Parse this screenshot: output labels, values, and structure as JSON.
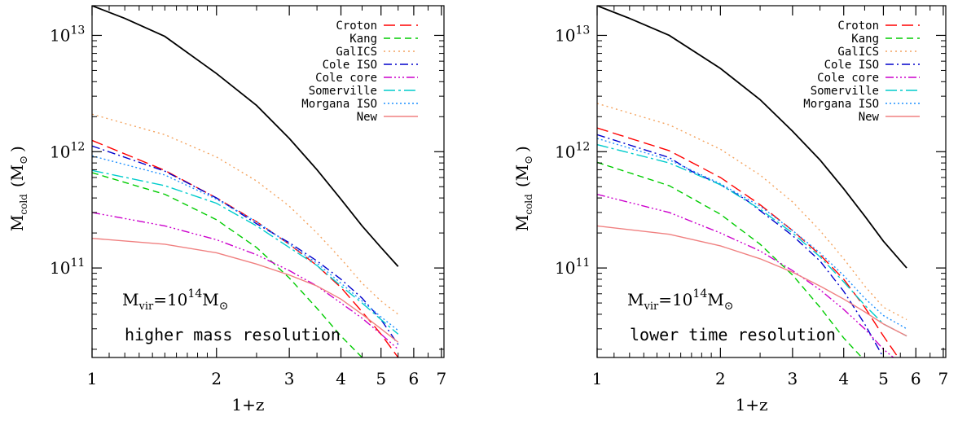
{
  "chart_data": [
    {
      "type": "line",
      "xlabel": "1+z",
      "ylabel": "M",
      "ylabel_sub": "cold",
      "ylabel_unit": "(M",
      "ylabel_unit_sym": "⊙",
      "ylabel_unit_close": ")",
      "xscale": "log",
      "yscale": "log",
      "xlim": [
        1,
        7.1
      ],
      "ylim": [
        17000000000.0,
        18000000000000.0
      ],
      "x_ticks": [
        1,
        2,
        3,
        4,
        5,
        6,
        7
      ],
      "x_tick_labels": [
        "1",
        "2",
        "3",
        "4",
        "5",
        "6",
        "7"
      ],
      "y_ticks": [
        100000000000.0,
        1000000000000.0,
        10000000000000.0
      ],
      "y_tick_labels": [
        {
          "base": "10",
          "exp": "11"
        },
        {
          "base": "10",
          "exp": "12"
        },
        {
          "base": "10",
          "exp": "13"
        }
      ],
      "annotation_mass": {
        "prefix": "M",
        "sub": "vir",
        "eq": "=10",
        "exp": "14",
        "unit": "M",
        "sym": "⊙"
      },
      "annotation_text": "higher mass resolution",
      "legend_position": "top-right",
      "series": [
        {
          "name": "Croton",
          "color": "#ff0000",
          "dash": "14,6",
          "points": [
            [
              1,
              1250000000000.0
            ],
            [
              1.5,
              690000000000.0
            ],
            [
              2,
              400000000000.0
            ],
            [
              2.5,
              250000000000.0
            ],
            [
              3,
              160000000000.0
            ],
            [
              3.5,
              105000000000.0
            ],
            [
              4,
              68000000000.0
            ],
            [
              4.5,
              42000000000.0
            ],
            [
              5,
              27000000000.0
            ],
            [
              5.5,
              17000000000.0
            ]
          ]
        },
        {
          "name": "Kang",
          "color": "#00cc00",
          "dash": "8,5",
          "points": [
            [
              1,
              660000000000.0
            ],
            [
              1.5,
              430000000000.0
            ],
            [
              2,
              260000000000.0
            ],
            [
              2.5,
              150000000000.0
            ],
            [
              3,
              82000000000.0
            ],
            [
              3.5,
              45000000000.0
            ],
            [
              4,
              26000000000.0
            ],
            [
              4.5,
              17000000000.0
            ]
          ]
        },
        {
          "name": "GalICS",
          "color": "#f4a460",
          "dash": "2,4",
          "points": [
            [
              1,
              2100000000000.0
            ],
            [
              1.5,
              1400000000000.0
            ],
            [
              2,
              900000000000.0
            ],
            [
              2.5,
              560000000000.0
            ],
            [
              3,
              340000000000.0
            ],
            [
              3.5,
              200000000000.0
            ],
            [
              4,
              120000000000.0
            ],
            [
              4.5,
              74000000000.0
            ],
            [
              5,
              52000000000.0
            ],
            [
              5.5,
              40000000000.0
            ]
          ]
        },
        {
          "name": "Cole ISO",
          "color": "#0000cc",
          "dash": "10,4,2,4",
          "points": [
            [
              1,
              1120000000000.0
            ],
            [
              1.5,
              680000000000.0
            ],
            [
              2,
              400000000000.0
            ],
            [
              2.5,
              240000000000.0
            ],
            [
              3,
              165000000000.0
            ],
            [
              3.5,
              115000000000.0
            ],
            [
              4,
              80000000000.0
            ],
            [
              4.5,
              55000000000.0
            ],
            [
              5,
              36000000000.0
            ],
            [
              5.5,
              22000000000.0
            ]
          ]
        },
        {
          "name": "Cole core",
          "color": "#cc00cc",
          "dash": "10,3,2,3,2,3,2,3",
          "points": [
            [
              1,
              300000000000.0
            ],
            [
              1.5,
              230000000000.0
            ],
            [
              2,
              175000000000.0
            ],
            [
              2.5,
              130000000000.0
            ],
            [
              3,
              95000000000.0
            ],
            [
              3.5,
              70000000000.0
            ],
            [
              4,
              50000000000.0
            ],
            [
              4.5,
              37000000000.0
            ],
            [
              5,
              27000000000.0
            ],
            [
              5.5,
              20000000000.0
            ]
          ]
        },
        {
          "name": "Somerville",
          "color": "#00cccc",
          "dash": "14,4,3,4",
          "points": [
            [
              1,
              690000000000.0
            ],
            [
              1.5,
              510000000000.0
            ],
            [
              2,
              360000000000.0
            ],
            [
              2.5,
              230000000000.0
            ],
            [
              3,
              150000000000.0
            ],
            [
              3.5,
              105000000000.0
            ],
            [
              4,
              70000000000.0
            ],
            [
              4.5,
              50000000000.0
            ],
            [
              5,
              36000000000.0
            ],
            [
              5.5,
              27000000000.0
            ]
          ]
        },
        {
          "name": "Morgana ISO",
          "color": "#1e90ff",
          "dash": "2,3",
          "points": [
            [
              1,
              920000000000.0
            ],
            [
              1.5,
              630000000000.0
            ],
            [
              2,
              390000000000.0
            ],
            [
              2.5,
              250000000000.0
            ],
            [
              3,
              160000000000.0
            ],
            [
              3.5,
              110000000000.0
            ],
            [
              4,
              74000000000.0
            ],
            [
              4.5,
              52000000000.0
            ],
            [
              5,
              38000000000.0
            ],
            [
              5.5,
              29000000000.0
            ]
          ]
        },
        {
          "name": "New",
          "color": "#f08080",
          "dash": "",
          "points": [
            [
              1,
              180000000000.0
            ],
            [
              1.5,
              160000000000.0
            ],
            [
              2,
              135000000000.0
            ],
            [
              2.5,
              108000000000.0
            ],
            [
              3,
              87000000000.0
            ],
            [
              3.5,
              70000000000.0
            ],
            [
              4,
              54000000000.0
            ],
            [
              4.5,
              40000000000.0
            ],
            [
              5,
              30000000000.0
            ],
            [
              5.5,
              23000000000.0
            ]
          ]
        },
        {
          "name": "",
          "color": "#000000",
          "dash": "",
          "points": [
            [
              1,
              18000000000000.0
            ],
            [
              1.2,
              14000000000000.0
            ],
            [
              1.5,
              9800000000000.0
            ],
            [
              2,
              4700000000000.0
            ],
            [
              2.5,
              2500000000000.0
            ],
            [
              3,
              1300000000000.0
            ],
            [
              3.5,
              700000000000.0
            ],
            [
              4,
              390000000000.0
            ],
            [
              4.5,
              230000000000.0
            ],
            [
              5,
              150000000000.0
            ],
            [
              5.5,
              103000000000.0
            ]
          ]
        }
      ]
    },
    {
      "type": "line",
      "xlabel": "1+z",
      "ylabel": "M",
      "ylabel_sub": "cold",
      "ylabel_unit": "(M",
      "ylabel_unit_sym": "⊙",
      "ylabel_unit_close": ")",
      "xscale": "log",
      "yscale": "log",
      "xlim": [
        1,
        7.1
      ],
      "ylim": [
        17000000000.0,
        18000000000000.0
      ],
      "x_ticks": [
        1,
        2,
        3,
        4,
        5,
        6,
        7
      ],
      "x_tick_labels": [
        "1",
        "2",
        "3",
        "4",
        "5",
        "6",
        "7"
      ],
      "y_ticks": [
        100000000000.0,
        1000000000000.0,
        10000000000000.0
      ],
      "y_tick_labels": [
        {
          "base": "10",
          "exp": "11"
        },
        {
          "base": "10",
          "exp": "12"
        },
        {
          "base": "10",
          "exp": "13"
        }
      ],
      "annotation_mass": {
        "prefix": "M",
        "sub": "vir",
        "eq": "=10",
        "exp": "14",
        "unit": "M",
        "sym": "⊙"
      },
      "annotation_text": "lower time resolution",
      "legend_position": "top-right",
      "series": [
        {
          "name": "Croton",
          "color": "#ff0000",
          "dash": "14,6",
          "points": [
            [
              1,
              1600000000000.0
            ],
            [
              1.5,
              1020000000000.0
            ],
            [
              2,
              600000000000.0
            ],
            [
              2.5,
              350000000000.0
            ],
            [
              3,
              210000000000.0
            ],
            [
              3.5,
              130000000000.0
            ],
            [
              4,
              80000000000.0
            ],
            [
              4.5,
              46000000000.0
            ],
            [
              5,
              26000000000.0
            ],
            [
              5.5,
              16000000000.0
            ]
          ]
        },
        {
          "name": "Kang",
          "color": "#00cc00",
          "dash": "8,5",
          "points": [
            [
              1,
              810000000000.0
            ],
            [
              1.5,
              510000000000.0
            ],
            [
              2,
              290000000000.0
            ],
            [
              2.5,
              160000000000.0
            ],
            [
              3,
              87000000000.0
            ],
            [
              3.5,
              46000000000.0
            ],
            [
              4,
              25000000000.0
            ],
            [
              4.5,
              16000000000.0
            ]
          ]
        },
        {
          "name": "GalICS",
          "color": "#f4a460",
          "dash": "2,4",
          "points": [
            [
              1,
              2600000000000.0
            ],
            [
              1.5,
              1700000000000.0
            ],
            [
              2,
              1050000000000.0
            ],
            [
              2.5,
              630000000000.0
            ],
            [
              3,
              370000000000.0
            ],
            [
              3.5,
              210000000000.0
            ],
            [
              4,
              120000000000.0
            ],
            [
              4.5,
              70000000000.0
            ],
            [
              5,
              46000000000.0
            ],
            [
              5.7,
              36000000000.0
            ]
          ]
        },
        {
          "name": "Cole ISO",
          "color": "#0000cc",
          "dash": "10,4,2,4",
          "points": [
            [
              1,
              1400000000000.0
            ],
            [
              1.5,
              890000000000.0
            ],
            [
              1.7,
              680000000000.0
            ],
            [
              2,
              520000000000.0
            ],
            [
              2.3,
              390000000000.0
            ],
            [
              2.6,
              280000000000.0
            ],
            [
              3,
              190000000000.0
            ],
            [
              3.5,
              115000000000.0
            ],
            [
              4,
              63000000000.0
            ],
            [
              4.5,
              33000000000.0
            ],
            [
              5,
              17000000000.0
            ]
          ]
        },
        {
          "name": "Cole core",
          "color": "#cc00cc",
          "dash": "10,3,2,3,2,3,2,3",
          "points": [
            [
              1,
              430000000000.0
            ],
            [
              1.5,
              300000000000.0
            ],
            [
              2,
              200000000000.0
            ],
            [
              2.5,
              140000000000.0
            ],
            [
              3,
              95000000000.0
            ],
            [
              3.5,
              65000000000.0
            ],
            [
              4,
              44000000000.0
            ],
            [
              4.5,
              30000000000.0
            ],
            [
              5,
              20000000000.0
            ],
            [
              5.4,
              16000000000.0
            ]
          ]
        },
        {
          "name": "Somerville",
          "color": "#00cccc",
          "dash": "14,4,3,4",
          "points": [
            [
              1,
              1150000000000.0
            ],
            [
              1.5,
              800000000000.0
            ],
            [
              2,
              520000000000.0
            ],
            [
              2.5,
              320000000000.0
            ],
            [
              3,
              200000000000.0
            ],
            [
              3.5,
              125000000000.0
            ],
            [
              4,
              76000000000.0
            ],
            [
              4.5,
              48000000000.0
            ],
            [
              5,
              33000000000.0
            ],
            [
              5.7,
              26000000000.0
            ]
          ]
        },
        {
          "name": "Morgana ISO",
          "color": "#1e90ff",
          "dash": "2,3",
          "points": [
            [
              1,
              1300000000000.0
            ],
            [
              1.5,
              850000000000.0
            ],
            [
              2,
              530000000000.0
            ],
            [
              2.5,
              340000000000.0
            ],
            [
              3,
              210000000000.0
            ],
            [
              3.5,
              135000000000.0
            ],
            [
              4,
              86000000000.0
            ],
            [
              4.5,
              55000000000.0
            ],
            [
              5,
              39000000000.0
            ],
            [
              5.7,
              30000000000.0
            ]
          ]
        },
        {
          "name": "New",
          "color": "#f08080",
          "dash": "",
          "points": [
            [
              1,
              230000000000.0
            ],
            [
              1.5,
              195000000000.0
            ],
            [
              2,
              155000000000.0
            ],
            [
              2.5,
              120000000000.0
            ],
            [
              3,
              92000000000.0
            ],
            [
              3.5,
              70000000000.0
            ],
            [
              4,
              54000000000.0
            ],
            [
              4.5,
              42000000000.0
            ],
            [
              5,
              33000000000.0
            ],
            [
              5.7,
              26000000000.0
            ]
          ]
        },
        {
          "name": "",
          "color": "#000000",
          "dash": "",
          "points": [
            [
              1,
              18000000000000.0
            ],
            [
              1.2,
              14000000000000.0
            ],
            [
              1.5,
              10000000000000.0
            ],
            [
              2,
              5200000000000.0
            ],
            [
              2.5,
              2800000000000.0
            ],
            [
              3,
              1500000000000.0
            ],
            [
              3.5,
              850000000000.0
            ],
            [
              4,
              480000000000.0
            ],
            [
              4.5,
              280000000000.0
            ],
            [
              5,
              170000000000.0
            ],
            [
              5.7,
              100000000000.0
            ]
          ]
        }
      ]
    }
  ]
}
